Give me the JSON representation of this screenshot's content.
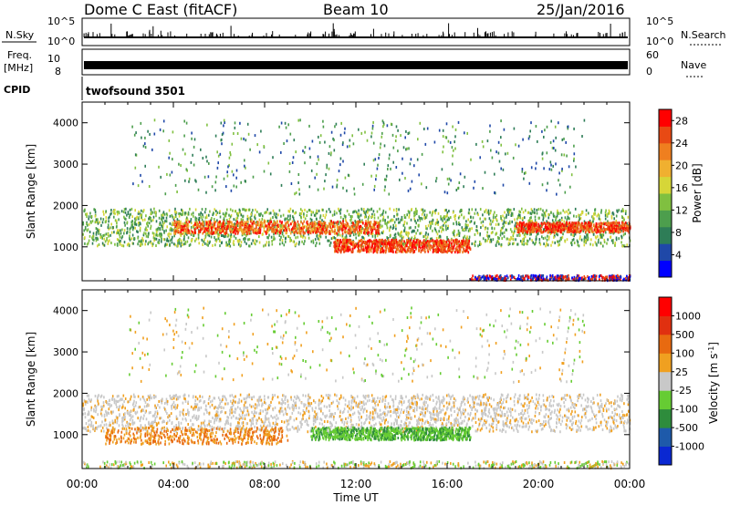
{
  "header": {
    "station": "Dome C East (fitACF)",
    "beam": "Beam 10",
    "date": "25/Jan/2016"
  },
  "top_panels": {
    "nsky_label": "N.Sky",
    "nsearch_label": "N.Search",
    "nsky_ticks": [
      "10^5",
      "10^0"
    ],
    "nsearch_ticks": [
      "10^5",
      "10^0"
    ],
    "freq_label_1": "Freq.",
    "freq_label_2": "[MHz]",
    "freq_ticks": [
      "10",
      "8"
    ],
    "nave_label": "Nave",
    "nave_ticks": [
      "60",
      "0"
    ],
    "cpid_label": "CPID",
    "cpid_value": "twofsound 3501"
  },
  "chart_data": [
    {
      "type": "heatmap",
      "ylabel": "Slant Range [km]",
      "xlabel": "Time UT",
      "x_tick_labels": [
        "00:00",
        "04:00",
        "08:00",
        "12:00",
        "16:00",
        "20:00",
        "00:00"
      ],
      "y_tick_labels": [
        "1000",
        "2000",
        "3000",
        "4000"
      ],
      "xlim_hours": [
        0,
        24
      ],
      "ylim_km": [
        180,
        4500
      ],
      "colorbar": {
        "label": "Power [dB]",
        "ticks": [
          "4",
          "8",
          "12",
          "16",
          "20",
          "24",
          "28"
        ],
        "range": [
          0,
          30
        ],
        "colors": [
          "#0000ff",
          "#1f48a8",
          "#2e7d57",
          "#4d9e4d",
          "#80c040",
          "#d6d638",
          "#f0b030",
          "#ef7f1f",
          "#e84a14",
          "#ff0000"
        ]
      }
    },
    {
      "type": "heatmap",
      "ylabel": "Slant Range [km]",
      "xlabel": "Time UT",
      "x_tick_labels": [
        "00:00",
        "04:00",
        "08:00",
        "12:00",
        "16:00",
        "20:00",
        "00:00"
      ],
      "y_tick_labels": [
        "1000",
        "2000",
        "3000",
        "4000"
      ],
      "xlim_hours": [
        0,
        24
      ],
      "ylim_km": [
        180,
        4500
      ],
      "colorbar": {
        "label": "Velocity [m s",
        "label_sup": "-1",
        "label_close": "]",
        "ticks": [
          "1000",
          "500",
          "100",
          "25",
          "-25",
          "-100",
          "-500",
          "-1000"
        ],
        "colors": [
          "#0a28d2",
          "#1e5aaa",
          "#2e8c3c",
          "#66cc33",
          "#c8c8c8",
          "#f0a020",
          "#e86a10",
          "#e03010",
          "#ff0000"
        ]
      }
    }
  ]
}
